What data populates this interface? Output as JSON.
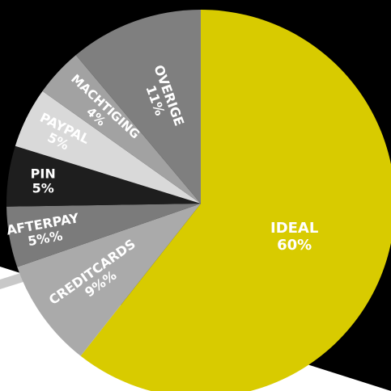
{
  "chart_data": {
    "type": "pie",
    "slices": [
      {
        "label": "IDEAL",
        "value_text": "60%",
        "value": 60,
        "color": "#d8cb00"
      },
      {
        "label": "CREDITCARDS",
        "value_text": "9%%",
        "value": 9,
        "color": "#aaaaaa"
      },
      {
        "label": "AFTERPAY",
        "value_text": "5%%",
        "value": 5,
        "color": "#7b7b7b"
      },
      {
        "label": "PIN",
        "value_text": "5%",
        "value": 5,
        "color": "#1e1e1e"
      },
      {
        "label": "PAYPAL",
        "value_text": "5%",
        "value": 5,
        "color": "#d9d9d9"
      },
      {
        "label": "MACHTIGING",
        "value_text": "4%",
        "value": 4,
        "color": "#a2a2a2"
      },
      {
        "label": "OVERIGE",
        "value_text": "11%",
        "value": 11,
        "color": "#7f7f7f"
      }
    ],
    "start_angle_deg": 0,
    "direction": "clockwise",
    "background_colors": {
      "backdrop": "#000000",
      "strip": "#c8c8c8"
    }
  }
}
